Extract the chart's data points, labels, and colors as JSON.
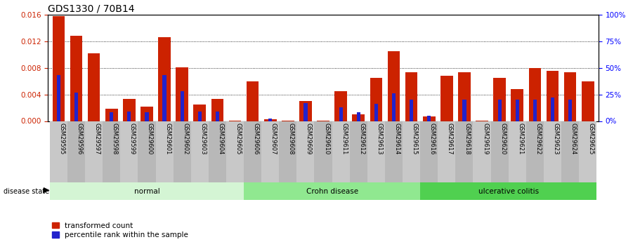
{
  "title": "GDS1330 / 70B14",
  "categories": [
    "GSM29595",
    "GSM29596",
    "GSM29597",
    "GSM29598",
    "GSM29599",
    "GSM29600",
    "GSM29601",
    "GSM29602",
    "GSM29603",
    "GSM29604",
    "GSM29605",
    "GSM29606",
    "GSM29607",
    "GSM29608",
    "GSM29609",
    "GSM29610",
    "GSM29611",
    "GSM29612",
    "GSM29613",
    "GSM29614",
    "GSM29615",
    "GSM29616",
    "GSM29617",
    "GSM29618",
    "GSM29619",
    "GSM29620",
    "GSM29621",
    "GSM29622",
    "GSM29623",
    "GSM29624",
    "GSM29625"
  ],
  "red_values": [
    0.0158,
    0.0128,
    0.0102,
    0.0018,
    0.0033,
    0.0022,
    0.0126,
    0.0081,
    0.0025,
    0.0033,
    0.0001,
    0.006,
    0.0003,
    0.0001,
    0.003,
    0.0001,
    0.0045,
    0.001,
    0.0065,
    0.0105,
    0.0073,
    0.0007,
    0.0068,
    0.0073,
    0.0001,
    0.0065,
    0.0048,
    0.008,
    0.0075,
    0.0073,
    0.006
  ],
  "blue_values_pct": [
    43,
    27,
    0,
    8,
    9,
    8,
    43,
    28,
    9,
    9,
    0,
    0,
    2,
    0,
    17,
    0,
    13,
    8,
    16,
    26,
    20,
    5,
    0,
    20,
    0,
    20,
    20,
    20,
    22,
    20,
    0
  ],
  "groups": [
    {
      "label": "normal",
      "start": 0,
      "end": 10,
      "color": "#d4f5d4"
    },
    {
      "label": "Crohn disease",
      "start": 11,
      "end": 20,
      "color": "#90e890"
    },
    {
      "label": "ulcerative colitis",
      "start": 21,
      "end": 30,
      "color": "#50d050"
    }
  ],
  "ylim_left": [
    0,
    0.016
  ],
  "ylim_right": [
    0,
    100
  ],
  "yticks_left": [
    0,
    0.004,
    0.008,
    0.012,
    0.016
  ],
  "yticks_right": [
    0,
    25,
    50,
    75,
    100
  ],
  "red_color": "#cc2200",
  "blue_color": "#2222cc",
  "bar_width": 0.7,
  "title_fontsize": 10,
  "tick_fontsize": 7.5,
  "label_fontsize": 7.5
}
